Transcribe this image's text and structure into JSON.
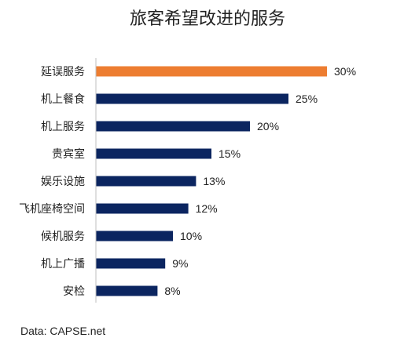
{
  "chart_data": {
    "type": "bar",
    "orientation": "horizontal",
    "title": "旅客希望改进的服务",
    "categories": [
      "延误服务",
      "机上餐食",
      "机上服务",
      "贵宾室",
      "娱乐设施",
      "飞机座椅空间",
      "候机服务",
      "机上广播",
      "安检"
    ],
    "values": [
      30,
      25,
      20,
      15,
      13,
      12,
      10,
      9,
      8
    ],
    "value_labels": [
      "30%",
      "25%",
      "20%",
      "15%",
      "13%",
      "12%",
      "10%",
      "9%",
      "8%"
    ],
    "unit": "%",
    "xlim": [
      0,
      30
    ],
    "grid": false,
    "legend": "none",
    "colors": {
      "highlight": "#ED7D31",
      "default": "#0B2560",
      "axis": "#BFBFBF",
      "text": "#222222"
    },
    "highlight_index": 0
  },
  "source": "Data: CAPSE.net"
}
